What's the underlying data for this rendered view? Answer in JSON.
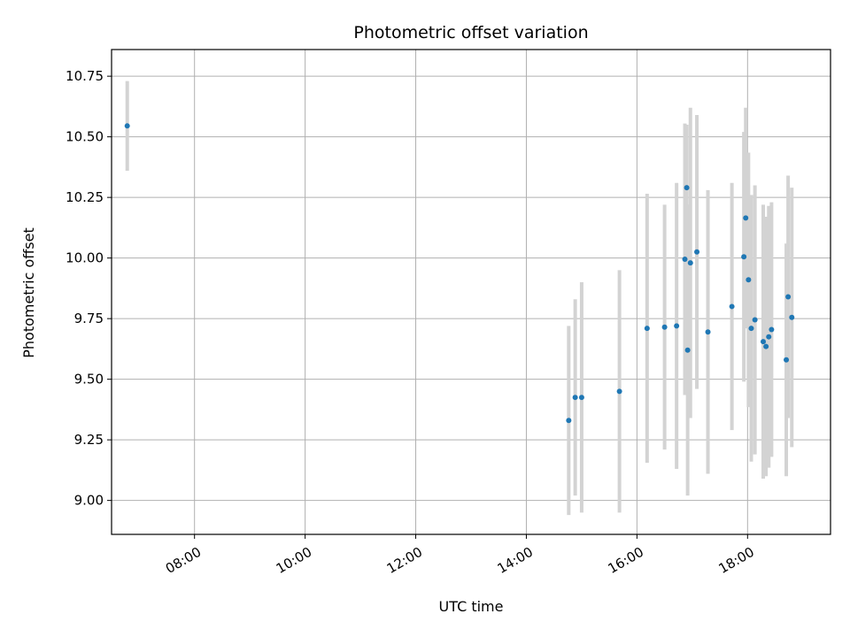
{
  "chart_data": {
    "type": "scatter",
    "title": "Photometric offset variation",
    "xlabel": "UTC time",
    "ylabel": "Photometric offset",
    "x_unit": "hours (UTC)",
    "xlim": [
      "06:30",
      "19:30"
    ],
    "ylim": [
      8.86,
      10.86
    ],
    "x_ticks": [
      "08:00",
      "10:00",
      "12:00",
      "14:00",
      "16:00",
      "18:00"
    ],
    "y_ticks": [
      "9.00",
      "9.25",
      "9.50",
      "9.75",
      "10.00",
      "10.25",
      "10.50",
      "10.75"
    ],
    "grid": true,
    "point_color": "#1f77b4",
    "errorbar_color": "#d3d3d3",
    "points": [
      {
        "time": "06:47",
        "y": 10.545,
        "yerr": 0.185
      },
      {
        "time": "14:46",
        "y": 9.33,
        "yerr": 0.39
      },
      {
        "time": "14:53",
        "y": 9.425,
        "yerr": 0.405
      },
      {
        "time": "15:00",
        "y": 9.425,
        "yerr": 0.475
      },
      {
        "time": "15:41",
        "y": 9.45,
        "yerr": 0.5
      },
      {
        "time": "16:11",
        "y": 9.71,
        "yerr": 0.555
      },
      {
        "time": "16:30",
        "y": 9.715,
        "yerr": 0.505
      },
      {
        "time": "16:43",
        "y": 9.72,
        "yerr": 0.59
      },
      {
        "time": "16:52",
        "y": 9.995,
        "yerr": 0.56
      },
      {
        "time": "16:54",
        "y": 10.29,
        "yerr": 0.26
      },
      {
        "time": "16:55",
        "y": 9.62,
        "yerr": 0.6
      },
      {
        "time": "16:58",
        "y": 9.98,
        "yerr": 0.64
      },
      {
        "time": "17:05",
        "y": 10.025,
        "yerr": 0.565
      },
      {
        "time": "17:17",
        "y": 9.695,
        "yerr": 0.585
      },
      {
        "time": "17:43",
        "y": 9.8,
        "yerr": 0.51
      },
      {
        "time": "17:56",
        "y": 10.005,
        "yerr": 0.515
      },
      {
        "time": "17:58",
        "y": 10.165,
        "yerr": 0.455
      },
      {
        "time": "18:01",
        "y": 9.91,
        "yerr": 0.525
      },
      {
        "time": "18:04",
        "y": 9.71,
        "yerr": 0.55
      },
      {
        "time": "18:08",
        "y": 9.745,
        "yerr": 0.555
      },
      {
        "time": "18:17",
        "y": 9.655,
        "yerr": 0.565
      },
      {
        "time": "18:20",
        "y": 9.635,
        "yerr": 0.535
      },
      {
        "time": "18:23",
        "y": 9.675,
        "yerr": 0.54
      },
      {
        "time": "18:26",
        "y": 9.705,
        "yerr": 0.525
      },
      {
        "time": "18:42",
        "y": 9.58,
        "yerr": 0.48
      },
      {
        "time": "18:44",
        "y": 9.84,
        "yerr": 0.5
      },
      {
        "time": "18:48",
        "y": 9.755,
        "yerr": 0.535
      }
    ]
  }
}
